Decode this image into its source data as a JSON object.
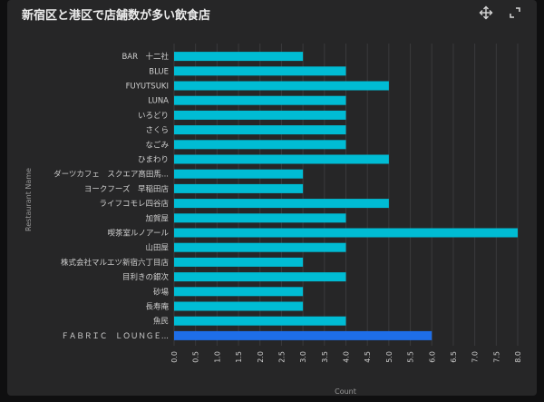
{
  "title": "新宿区と港区で店舗数が多い飲食店",
  "toolbar": {
    "move_icon": "move-icon",
    "expand_icon": "expand-icon"
  },
  "colors": {
    "bar": "#00bcd4",
    "highlight": "#1e6ee8",
    "grid": "#3a3a3c",
    "text": "#cfcfcf",
    "axis_label": "#9a9a9a"
  },
  "chart_data": {
    "type": "bar",
    "orientation": "horizontal",
    "xlabel": "Count",
    "ylabel": "Restaurant Name",
    "xlim": [
      0,
      8
    ],
    "x_ticks": [
      "0.0",
      "0.5",
      "1.0",
      "1.5",
      "2.0",
      "2.5",
      "3.0",
      "3.5",
      "4.0",
      "4.5",
      "5.0",
      "5.5",
      "6.0",
      "6.5",
      "7.0",
      "7.5",
      "8.0"
    ],
    "grid": true,
    "categories": [
      "BAR　十二社",
      "BLUE",
      "FUYUTSUKI",
      "LUNA",
      "いろどり",
      "さくら",
      "なごみ",
      "ひまわり",
      "ダーツカフェ　スクエア高田馬...",
      "ヨークフーズ　早稲田店",
      "ライフコモレ四谷店",
      "加賀屋",
      "喫茶室ルノアール",
      "山田屋",
      "株式会社マルエツ新宿六丁目店",
      "目利きの銀次",
      "砂場",
      "長寿庵",
      "魚民",
      "ＦＡＢＲＩＣ　ＬＯＵＮＧＥ..."
    ],
    "values": [
      3,
      4,
      5,
      4,
      4,
      4,
      4,
      5,
      3,
      3,
      5,
      4,
      8,
      4,
      3,
      4,
      3,
      3,
      4,
      6
    ],
    "highlighted_index": 19
  }
}
